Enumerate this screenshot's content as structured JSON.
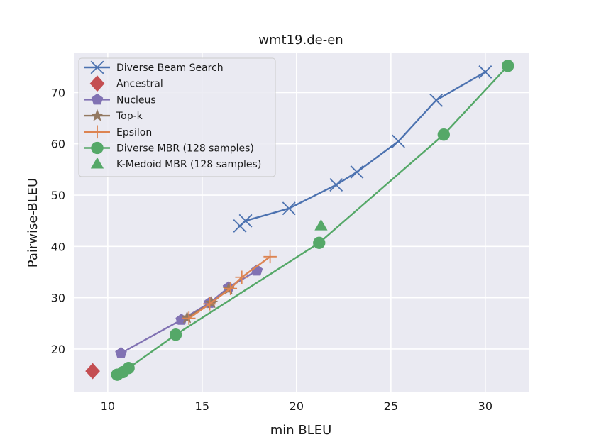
{
  "chart_data": {
    "type": "line",
    "title": "wmt19.de-en",
    "xlabel": "min BLEU",
    "ylabel": "Pairwise-BLEU",
    "xlim": [
      8.2,
      32.3
    ],
    "ylim": [
      11.7,
      77.8
    ],
    "xticks": [
      10,
      15,
      20,
      25,
      30
    ],
    "yticks": [
      20,
      30,
      40,
      50,
      60,
      70
    ],
    "grid": true,
    "legend_position": "top-left",
    "colors": {
      "background": "#eaeaf2",
      "grid": "#ffffff"
    },
    "series": [
      {
        "name": "Diverse Beam Search",
        "color": "#4c72b0",
        "marker": "x",
        "line": true,
        "points": [
          [
            17.0,
            44.0
          ],
          [
            17.3,
            45.0
          ],
          [
            19.6,
            47.4
          ],
          [
            22.1,
            52.0
          ],
          [
            23.2,
            54.5
          ],
          [
            25.4,
            60.5
          ],
          [
            27.4,
            68.5
          ],
          [
            30.0,
            74.0
          ]
        ]
      },
      {
        "name": "Ancestral",
        "color": "#c44e52",
        "marker": "diamond",
        "line": false,
        "points": [
          [
            9.2,
            15.7
          ]
        ]
      },
      {
        "name": "Nucleus",
        "color": "#8172b3",
        "marker": "pentagon",
        "line": true,
        "points": [
          [
            10.7,
            19.2
          ],
          [
            13.9,
            25.7
          ],
          [
            15.4,
            29.0
          ],
          [
            16.4,
            32.0
          ],
          [
            17.9,
            35.3
          ]
        ]
      },
      {
        "name": "Top-k",
        "color": "#937860",
        "marker": "star",
        "line": true,
        "points": [
          [
            14.2,
            26.1
          ],
          [
            15.5,
            29.0
          ],
          [
            16.4,
            31.7
          ]
        ]
      },
      {
        "name": "Epsilon",
        "color": "#dd8452",
        "marker": "plus",
        "line": true,
        "points": [
          [
            14.3,
            26.0
          ],
          [
            15.4,
            28.8
          ],
          [
            16.5,
            31.8
          ],
          [
            17.1,
            34.0
          ],
          [
            18.6,
            38.0
          ]
        ]
      },
      {
        "name": "Diverse MBR (128 samples)",
        "color": "#55a868",
        "marker": "circle",
        "line": true,
        "points": [
          [
            10.5,
            15.0
          ],
          [
            10.8,
            15.5
          ],
          [
            11.1,
            16.3
          ],
          [
            13.6,
            22.8
          ],
          [
            21.2,
            40.7
          ],
          [
            27.8,
            61.8
          ],
          [
            31.2,
            75.2
          ]
        ]
      },
      {
        "name": "K-Medoid MBR (128 samples)",
        "color": "#55a868",
        "marker": "triangle",
        "line": false,
        "points": [
          [
            21.3,
            44.0
          ]
        ]
      }
    ]
  }
}
